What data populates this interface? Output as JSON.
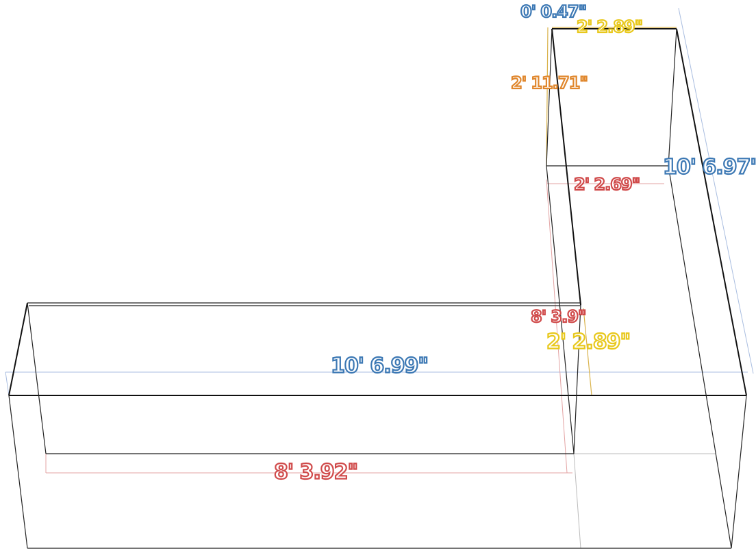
{
  "labels": [
    {
      "text": "0' 0.47\""
    },
    {
      "text": "2' 2.89\""
    },
    {
      "text": "2' 11.71\""
    },
    {
      "text": "10' 6.97\""
    },
    {
      "text": "2' 2.69\""
    },
    {
      "text": "8' 3.9\""
    },
    {
      "text": "2' 2.89\""
    },
    {
      "text": "10' 6.99\""
    },
    {
      "text": "8' 3.92\""
    }
  ]
}
